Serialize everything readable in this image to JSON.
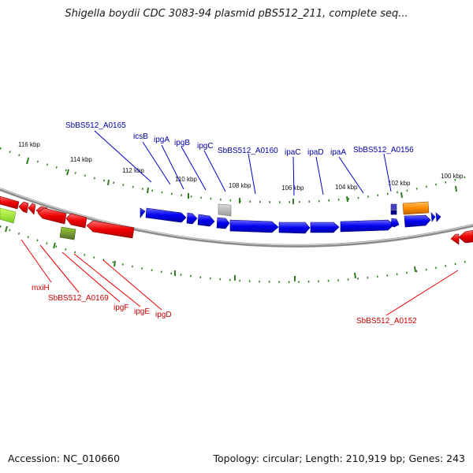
{
  "title": "Shigella boydii CDC 3083-94 plasmid pBS512_211, complete seq...",
  "footer": {
    "accession": "Accession: NC_010660",
    "summary": "Topology: circular; Length: 210,919 bp; Genes: 243"
  },
  "scale_labels": [
    "116 kbp",
    "114 kbp",
    "112 kbp",
    "110 kbp",
    "108 kbp",
    "106 kbp",
    "104 kbp",
    "102 kbp",
    "100 kbp"
  ],
  "genes_forward": [
    "SbBS512_A0165",
    "icsB",
    "ipgA",
    "ipgB",
    "ipgC",
    "SbBS512_A0160",
    "ipaC",
    "ipaD",
    "ipaA",
    "SbBS512_A0156"
  ],
  "genes_reverse": [
    "mxiH",
    "SbBS512_A0169",
    "ipgF",
    "ipgE",
    "ipgD",
    "SbBS512_A0152"
  ],
  "colors": {
    "forward_gene": "#0000ee",
    "reverse_gene": "#ee0000",
    "label_forward": "#0000aa",
    "label_reverse": "#cc0000",
    "backbone": "#8a8a8a",
    "scale_ticks": "#2e7d1f",
    "pseudo_gene": "#b0b0b0",
    "orange_feature": "#ff8c00",
    "olive_feature": "#6b8e23",
    "lime_feature": "#9ee830"
  }
}
